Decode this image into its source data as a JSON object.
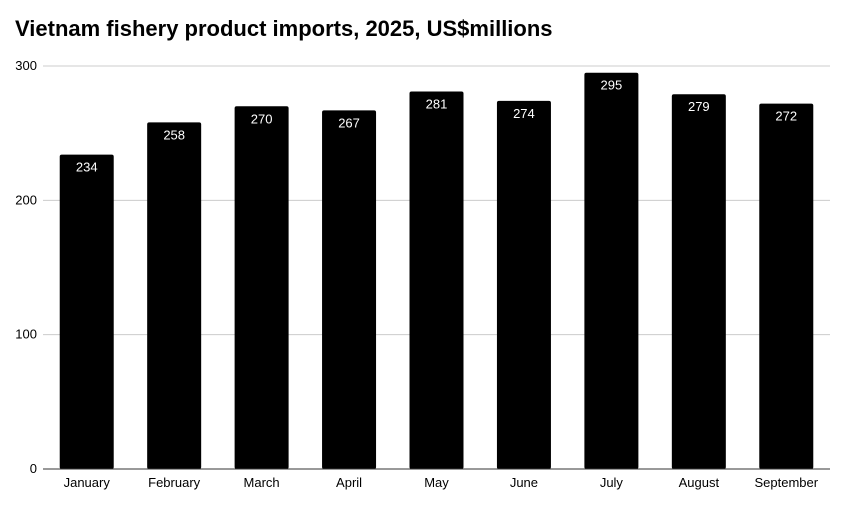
{
  "chart_data": {
    "type": "bar",
    "title": "Vietnam fishery product imports, 2025, US$millions",
    "categories": [
      "January",
      "February",
      "March",
      "April",
      "May",
      "June",
      "July",
      "August",
      "September"
    ],
    "values": [
      234,
      258,
      270,
      267,
      281,
      274,
      295,
      279,
      272
    ],
    "data_labels": [
      "234",
      "258",
      "270",
      "267",
      "281",
      "274",
      "295",
      "279",
      "272"
    ],
    "yticks": [
      0,
      100,
      200,
      300
    ],
    "ylim": [
      0,
      300
    ],
    "xlabel": "",
    "ylabel": "",
    "grid": true,
    "legend": "none",
    "colors": {
      "bar": "#000000",
      "bar_label": "#ffffff",
      "grid": "#cccccc",
      "axis": "#333333",
      "text": "#000000"
    }
  }
}
